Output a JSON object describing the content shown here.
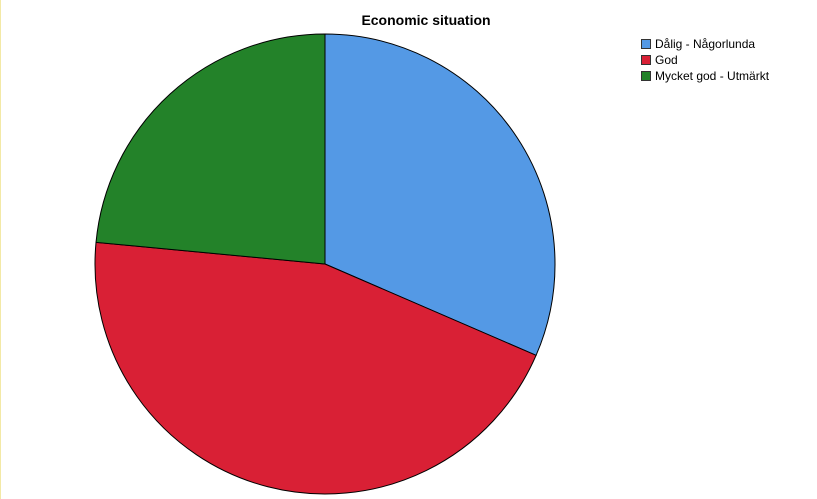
{
  "chart_data": {
    "type": "pie",
    "title": "Economic situation",
    "legend_position": "top-right",
    "categories": [
      "Dålig - Någorlunda",
      "God",
      "Mycket god - Utmärkt"
    ],
    "values": [
      31.5,
      45.0,
      23.5
    ],
    "colors": [
      "#5499e5",
      "#d92035",
      "#238229"
    ],
    "start_angle_deg": 0,
    "direction": "clockwise"
  }
}
